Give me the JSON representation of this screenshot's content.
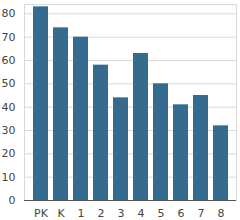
{
  "chart_data": {
    "type": "bar",
    "categories": [
      "PK",
      "K",
      "1",
      "2",
      "3",
      "4",
      "5",
      "6",
      "7",
      "8"
    ],
    "values": [
      83,
      74,
      70,
      58,
      44,
      63,
      50,
      41,
      45,
      32
    ],
    "color": "#346b8f",
    "ylim": [
      0,
      84
    ],
    "yticks": [
      0,
      10,
      20,
      30,
      40,
      50,
      60,
      70,
      80
    ],
    "grid": true
  }
}
